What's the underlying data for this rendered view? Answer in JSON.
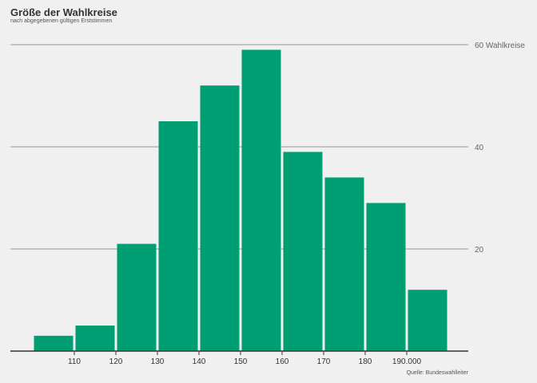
{
  "chart_data": {
    "type": "bar",
    "title": "Größe der Wahlkreise",
    "subtitle": "nach abgegebenen gültigen Erststimmen",
    "source": "Quelle: Bundeswahlleiter",
    "xlabel": "",
    "ylabel": "",
    "bins": [
      {
        "from": 100,
        "to": 110,
        "value": 3
      },
      {
        "from": 110,
        "to": 120,
        "value": 5
      },
      {
        "from": 120,
        "to": 130,
        "value": 21
      },
      {
        "from": 130,
        "to": 140,
        "value": 45
      },
      {
        "from": 140,
        "to": 150,
        "value": 52
      },
      {
        "from": 150,
        "to": 160,
        "value": 59
      },
      {
        "from": 160,
        "to": 170,
        "value": 39
      },
      {
        "from": 170,
        "to": 180,
        "value": 34
      },
      {
        "from": 180,
        "to": 190,
        "value": 29
      },
      {
        "from": 190,
        "to": 200,
        "value": 12
      }
    ],
    "x_ticks": [
      {
        "value": 110,
        "label": "110"
      },
      {
        "value": 120,
        "label": "120"
      },
      {
        "value": 130,
        "label": "130"
      },
      {
        "value": 140,
        "label": "140"
      },
      {
        "value": 150,
        "label": "150"
      },
      {
        "value": 160,
        "label": "160"
      },
      {
        "value": 170,
        "label": "170"
      },
      {
        "value": 180,
        "label": "180"
      },
      {
        "value": 190,
        "label": "190.000"
      }
    ],
    "y_ticks": [
      {
        "value": 20,
        "label": "20"
      },
      {
        "value": 40,
        "label": "40"
      },
      {
        "value": 60,
        "label": "60 Wahlkreise"
      }
    ],
    "xlim": [
      95,
      205
    ],
    "ylim": [
      0,
      60
    ],
    "grid": true,
    "bar_color": "#009e73",
    "grid_color": "#999999",
    "axis_color": "#333333"
  }
}
